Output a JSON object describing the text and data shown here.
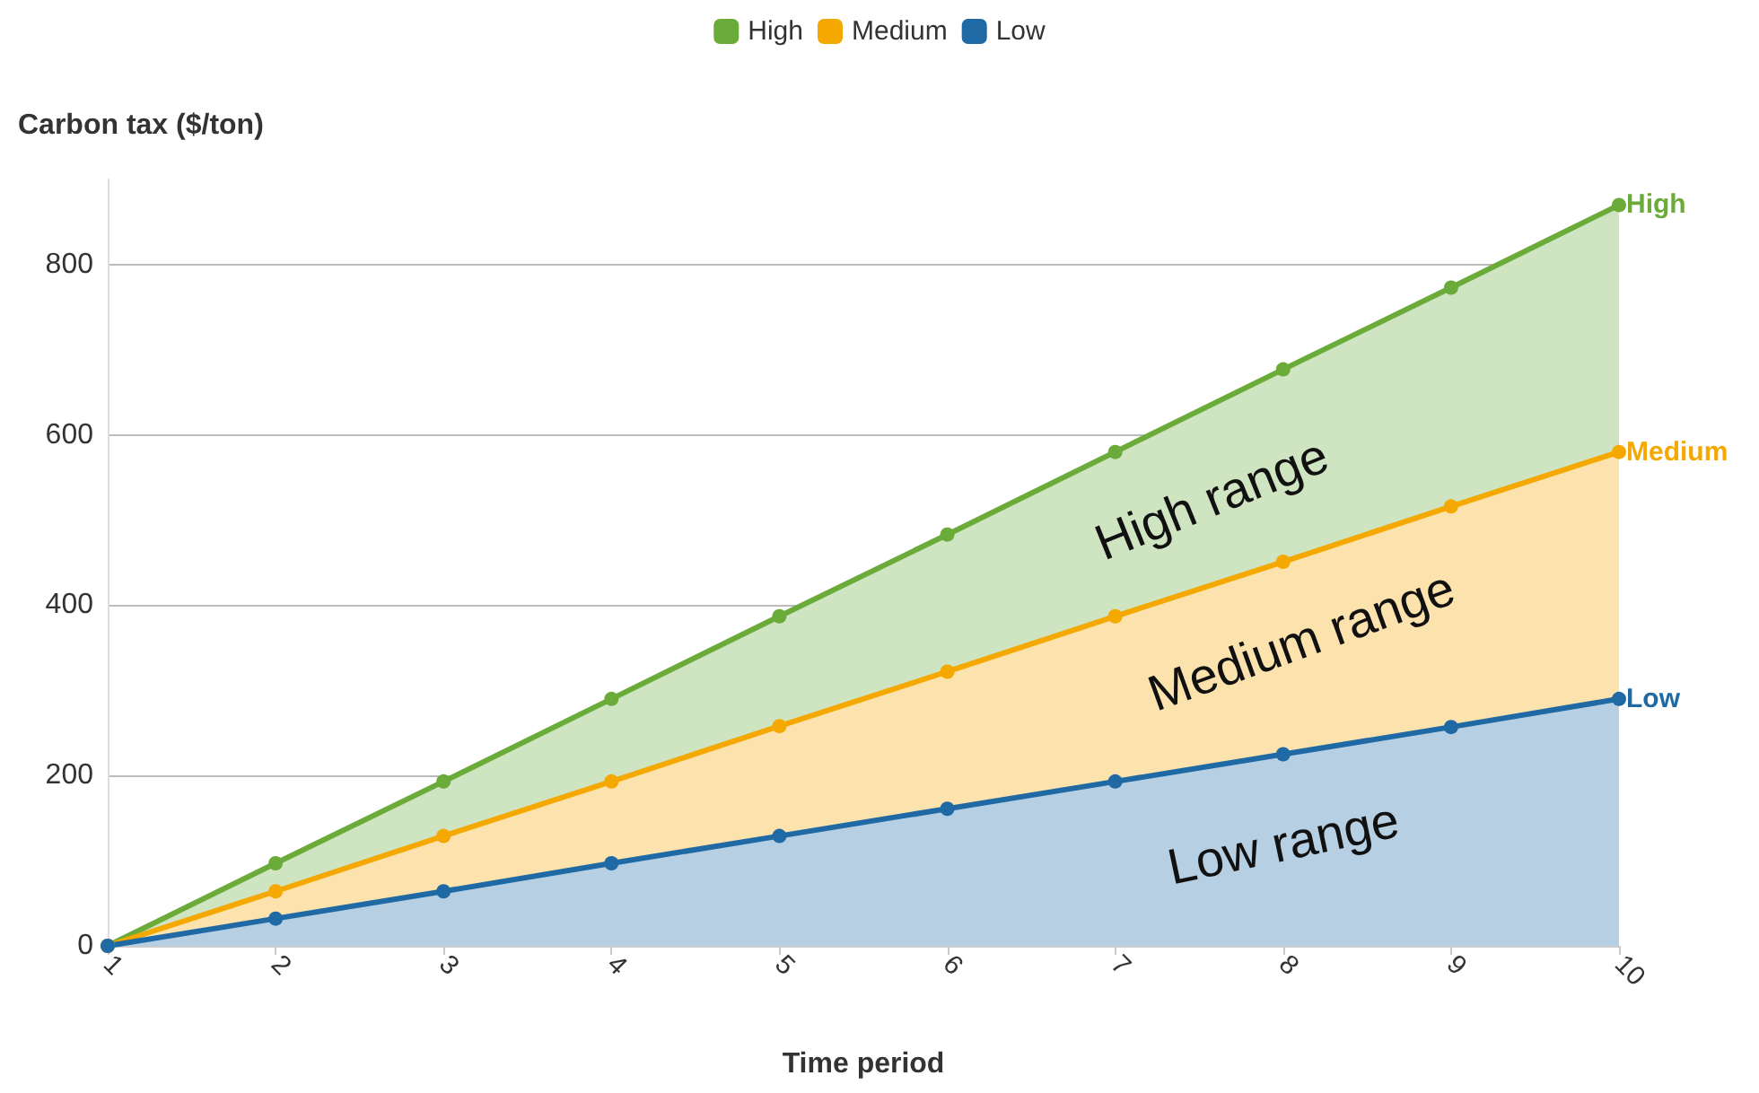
{
  "chart_data": {
    "type": "area",
    "xlabel": "Time period",
    "ylabel": "Carbon tax ($/ton)",
    "x": [
      1,
      2,
      3,
      4,
      5,
      6,
      7,
      8,
      9,
      10
    ],
    "series": [
      {
        "name": "High",
        "color": "#6aab3a",
        "values": [
          0,
          97,
          193,
          290,
          387,
          483,
          580,
          677,
          773,
          870
        ]
      },
      {
        "name": "Medium",
        "color": "#f5a800",
        "values": [
          0,
          64,
          129,
          193,
          258,
          322,
          387,
          451,
          516,
          580
        ]
      },
      {
        "name": "Low",
        "color": "#1f6aa5",
        "values": [
          0,
          32,
          64,
          97,
          129,
          161,
          193,
          225,
          257,
          290
        ]
      }
    ],
    "xlim": [
      1,
      10
    ],
    "xticks": [
      1,
      2,
      3,
      4,
      5,
      6,
      7,
      8,
      9,
      10
    ],
    "ylim": [
      0,
      900
    ],
    "yticks": [
      0,
      200,
      400,
      600,
      800
    ],
    "grid": "y",
    "legend": "top",
    "marker": "circle",
    "line_style": "solid",
    "annotations": [
      "High range",
      "Medium range",
      "Low range"
    ]
  }
}
